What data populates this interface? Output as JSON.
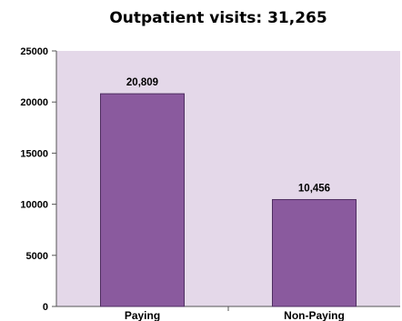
{
  "chart_data": {
    "type": "bar",
    "title": "Outpatient visits: 31,265",
    "categories": [
      "Paying",
      "Non-Paying"
    ],
    "values": [
      20809,
      10456
    ],
    "data_labels": [
      "20,809",
      "10,456"
    ],
    "yticks": [
      "0",
      "5000",
      "10000",
      "15000",
      "20000",
      "25000"
    ],
    "ylim": [
      0,
      25000
    ],
    "xlabel": "",
    "ylabel": "",
    "grid": false,
    "colors": {
      "bar": "#8a5a9e",
      "bar_edge": "#4e2e60",
      "plot_bg": "#e4d8e9"
    }
  }
}
